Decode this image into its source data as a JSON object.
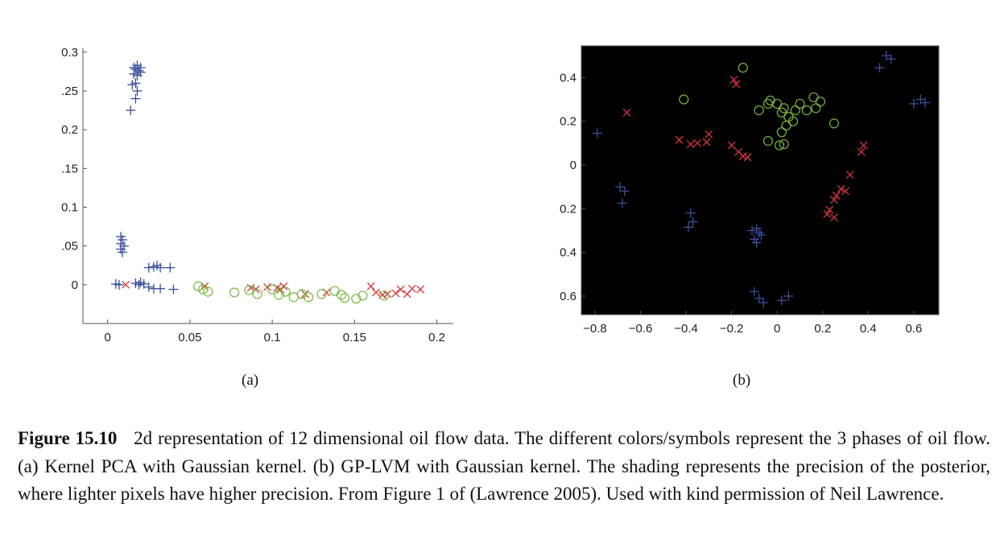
{
  "colors": {
    "phase1": "#3a4f9c",
    "phase2": "#d9363e",
    "phase3": "#76b83c",
    "background_b": "#000000",
    "axis": "#555555"
  },
  "chart_data": [
    {
      "type": "scatter",
      "panel_label": "(a)",
      "title": "",
      "xlabel": "",
      "ylabel": "",
      "xlim": [
        -0.015,
        0.21
      ],
      "ylim": [
        -0.05,
        0.305
      ],
      "x_ticks": [
        0,
        0.05,
        0.1,
        0.15,
        0.2
      ],
      "x_tick_labels": [
        "0",
        "0.05",
        "0.1",
        "0.15",
        "0.2"
      ],
      "y_ticks": [
        0,
        0.05,
        0.1,
        0.15,
        0.2,
        0.25,
        0.3
      ],
      "y_tick_labels": [
        "0",
        ".05",
        "0.1",
        ".15",
        "0.2",
        ".25",
        "0.3"
      ],
      "background": "white",
      "series": [
        {
          "marker": "plus",
          "color": "#3a4f9c",
          "points": [
            [
              0.016,
              0.28
            ],
            [
              0.017,
              0.278
            ],
            [
              0.018,
              0.283
            ],
            [
              0.019,
              0.276
            ],
            [
              0.02,
              0.28
            ],
            [
              0.016,
              0.272
            ],
            [
              0.018,
              0.27
            ],
            [
              0.02,
              0.274
            ],
            [
              0.017,
              0.26
            ],
            [
              0.015,
              0.258
            ],
            [
              0.018,
              0.25
            ],
            [
              0.017,
              0.24
            ],
            [
              0.014,
              0.225
            ],
            [
              0.008,
              0.062
            ],
            [
              0.009,
              0.058
            ],
            [
              0.008,
              0.053
            ],
            [
              0.01,
              0.05
            ],
            [
              0.008,
              0.046
            ],
            [
              0.009,
              0.042
            ],
            [
              0.025,
              0.022
            ],
            [
              0.028,
              0.023
            ],
            [
              0.03,
              0.025
            ],
            [
              0.032,
              0.022
            ],
            [
              0.038,
              0.022
            ],
            [
              0.005,
              0.001
            ],
            [
              0.007,
              0.0
            ],
            [
              0.017,
              0.002
            ],
            [
              0.02,
              0.003
            ],
            [
              0.022,
              0.001
            ],
            [
              0.019,
              0.0
            ],
            [
              0.025,
              -0.003
            ],
            [
              0.028,
              -0.005
            ],
            [
              0.032,
              -0.005
            ],
            [
              0.04,
              -0.006
            ]
          ]
        },
        {
          "marker": "x",
          "color": "#d9363e",
          "points": [
            [
              0.011,
              0.0
            ],
            [
              0.059,
              -0.002
            ],
            [
              0.087,
              -0.004
            ],
            [
              0.09,
              -0.006
            ],
            [
              0.097,
              -0.003
            ],
            [
              0.103,
              -0.004
            ],
            [
              0.105,
              -0.006
            ],
            [
              0.107,
              -0.002
            ],
            [
              0.12,
              -0.012
            ],
            [
              0.133,
              -0.01
            ],
            [
              0.16,
              -0.002
            ],
            [
              0.163,
              -0.01
            ],
            [
              0.167,
              -0.013
            ],
            [
              0.17,
              -0.012
            ],
            [
              0.175,
              -0.011
            ],
            [
              0.178,
              -0.006
            ],
            [
              0.182,
              -0.012
            ],
            [
              0.185,
              -0.005
            ],
            [
              0.19,
              -0.006
            ]
          ]
        },
        {
          "marker": "circle",
          "color": "#76b83c",
          "points": [
            [
              0.055,
              -0.002
            ],
            [
              0.058,
              -0.006
            ],
            [
              0.061,
              -0.009
            ],
            [
              0.077,
              -0.01
            ],
            [
              0.086,
              -0.007
            ],
            [
              0.091,
              -0.012
            ],
            [
              0.1,
              -0.006
            ],
            [
              0.104,
              -0.013
            ],
            [
              0.108,
              -0.009
            ],
            [
              0.113,
              -0.016
            ],
            [
              0.118,
              -0.012
            ],
            [
              0.122,
              -0.016
            ],
            [
              0.13,
              -0.012
            ],
            [
              0.138,
              -0.008
            ],
            [
              0.142,
              -0.013
            ],
            [
              0.144,
              -0.017
            ],
            [
              0.151,
              -0.018
            ],
            [
              0.155,
              -0.014
            ],
            [
              0.168,
              -0.014
            ]
          ]
        }
      ]
    },
    {
      "type": "scatter",
      "panel_label": "(b)",
      "title": "",
      "xlabel": "",
      "ylabel": "",
      "xlim": [
        -0.86,
        0.71
      ],
      "ylim": [
        -0.685,
        0.545
      ],
      "x_ticks": [
        -0.8,
        -0.6,
        -0.4,
        -0.2,
        0,
        0.2,
        0.4,
        0.6
      ],
      "x_tick_labels": [
        "−0.8",
        "−0.6",
        "−0.4",
        "−0.2",
        "0",
        "0.2",
        "0.4",
        "0.6"
      ],
      "y_ticks": [
        0.4,
        0.2,
        0,
        -0.2,
        -0.4,
        -0.6
      ],
      "y_tick_labels": [
        "0.4",
        "0.2",
        "0",
        "0.2",
        "0.4",
        "0.6"
      ],
      "background": "black",
      "series": [
        {
          "marker": "plus",
          "color": "#3a4f9c",
          "points": [
            [
              0.48,
              0.5
            ],
            [
              0.5,
              0.485
            ],
            [
              0.45,
              0.445
            ],
            [
              0.6,
              0.28
            ],
            [
              0.63,
              0.3
            ],
            [
              0.65,
              0.285
            ],
            [
              -0.79,
              0.145
            ],
            [
              -0.69,
              -0.1
            ],
            [
              -0.67,
              -0.12
            ],
            [
              -0.68,
              -0.175
            ],
            [
              -0.38,
              -0.22
            ],
            [
              -0.37,
              -0.26
            ],
            [
              -0.39,
              -0.285
            ],
            [
              -0.09,
              -0.29
            ],
            [
              -0.08,
              -0.31
            ],
            [
              -0.07,
              -0.32
            ],
            [
              -0.1,
              -0.34
            ],
            [
              -0.09,
              -0.355
            ],
            [
              -0.11,
              -0.3
            ],
            [
              -0.1,
              -0.58
            ],
            [
              -0.08,
              -0.61
            ],
            [
              -0.06,
              -0.63
            ],
            [
              0.02,
              -0.62
            ],
            [
              0.05,
              -0.6
            ]
          ]
        },
        {
          "marker": "x",
          "color": "#d9363e",
          "points": [
            [
              -0.66,
              0.24
            ],
            [
              -0.43,
              0.115
            ],
            [
              -0.38,
              0.095
            ],
            [
              -0.35,
              0.1
            ],
            [
              -0.31,
              0.105
            ],
            [
              -0.3,
              0.14
            ],
            [
              -0.2,
              0.09
            ],
            [
              -0.17,
              0.06
            ],
            [
              -0.15,
              0.04
            ],
            [
              -0.13,
              0.035
            ],
            [
              -0.18,
              0.37
            ],
            [
              -0.19,
              0.39
            ],
            [
              0.38,
              0.09
            ],
            [
              0.37,
              0.06
            ],
            [
              0.32,
              -0.045
            ],
            [
              0.28,
              -0.11
            ],
            [
              0.26,
              -0.14
            ],
            [
              0.25,
              -0.16
            ],
            [
              0.23,
              -0.205
            ],
            [
              0.22,
              -0.225
            ],
            [
              0.25,
              -0.24
            ],
            [
              0.3,
              -0.12
            ]
          ]
        },
        {
          "marker": "circle",
          "color": "#76b83c",
          "points": [
            [
              -0.15,
              0.445
            ],
            [
              -0.41,
              0.3
            ],
            [
              -0.08,
              0.25
            ],
            [
              -0.04,
              0.28
            ],
            [
              -0.03,
              0.295
            ],
            [
              0.0,
              0.28
            ],
            [
              0.02,
              0.24
            ],
            [
              0.03,
              0.26
            ],
            [
              0.05,
              0.22
            ],
            [
              0.08,
              0.25
            ],
            [
              0.1,
              0.28
            ],
            [
              0.16,
              0.31
            ],
            [
              0.19,
              0.29
            ],
            [
              0.17,
              0.26
            ],
            [
              0.13,
              0.25
            ],
            [
              0.07,
              0.2
            ],
            [
              0.04,
              0.18
            ],
            [
              0.02,
              0.15
            ],
            [
              0.01,
              0.09
            ],
            [
              0.03,
              0.095
            ],
            [
              -0.04,
              0.11
            ],
            [
              0.25,
              0.19
            ]
          ]
        }
      ]
    }
  ],
  "caption": {
    "label": "Figure 15.10",
    "text": "2d representation of 12 dimensional oil flow data.  The different colors/symbols represent the 3 phases of oil flow.  (a) Kernel PCA with Gaussian kernel.  (b) GP-LVM with Gaussian kernel.  The shading represents the precision of the posterior, where lighter pixels have higher precision. From Figure 1 of (Lawrence 2005). Used with kind permission of Neil Lawrence."
  }
}
